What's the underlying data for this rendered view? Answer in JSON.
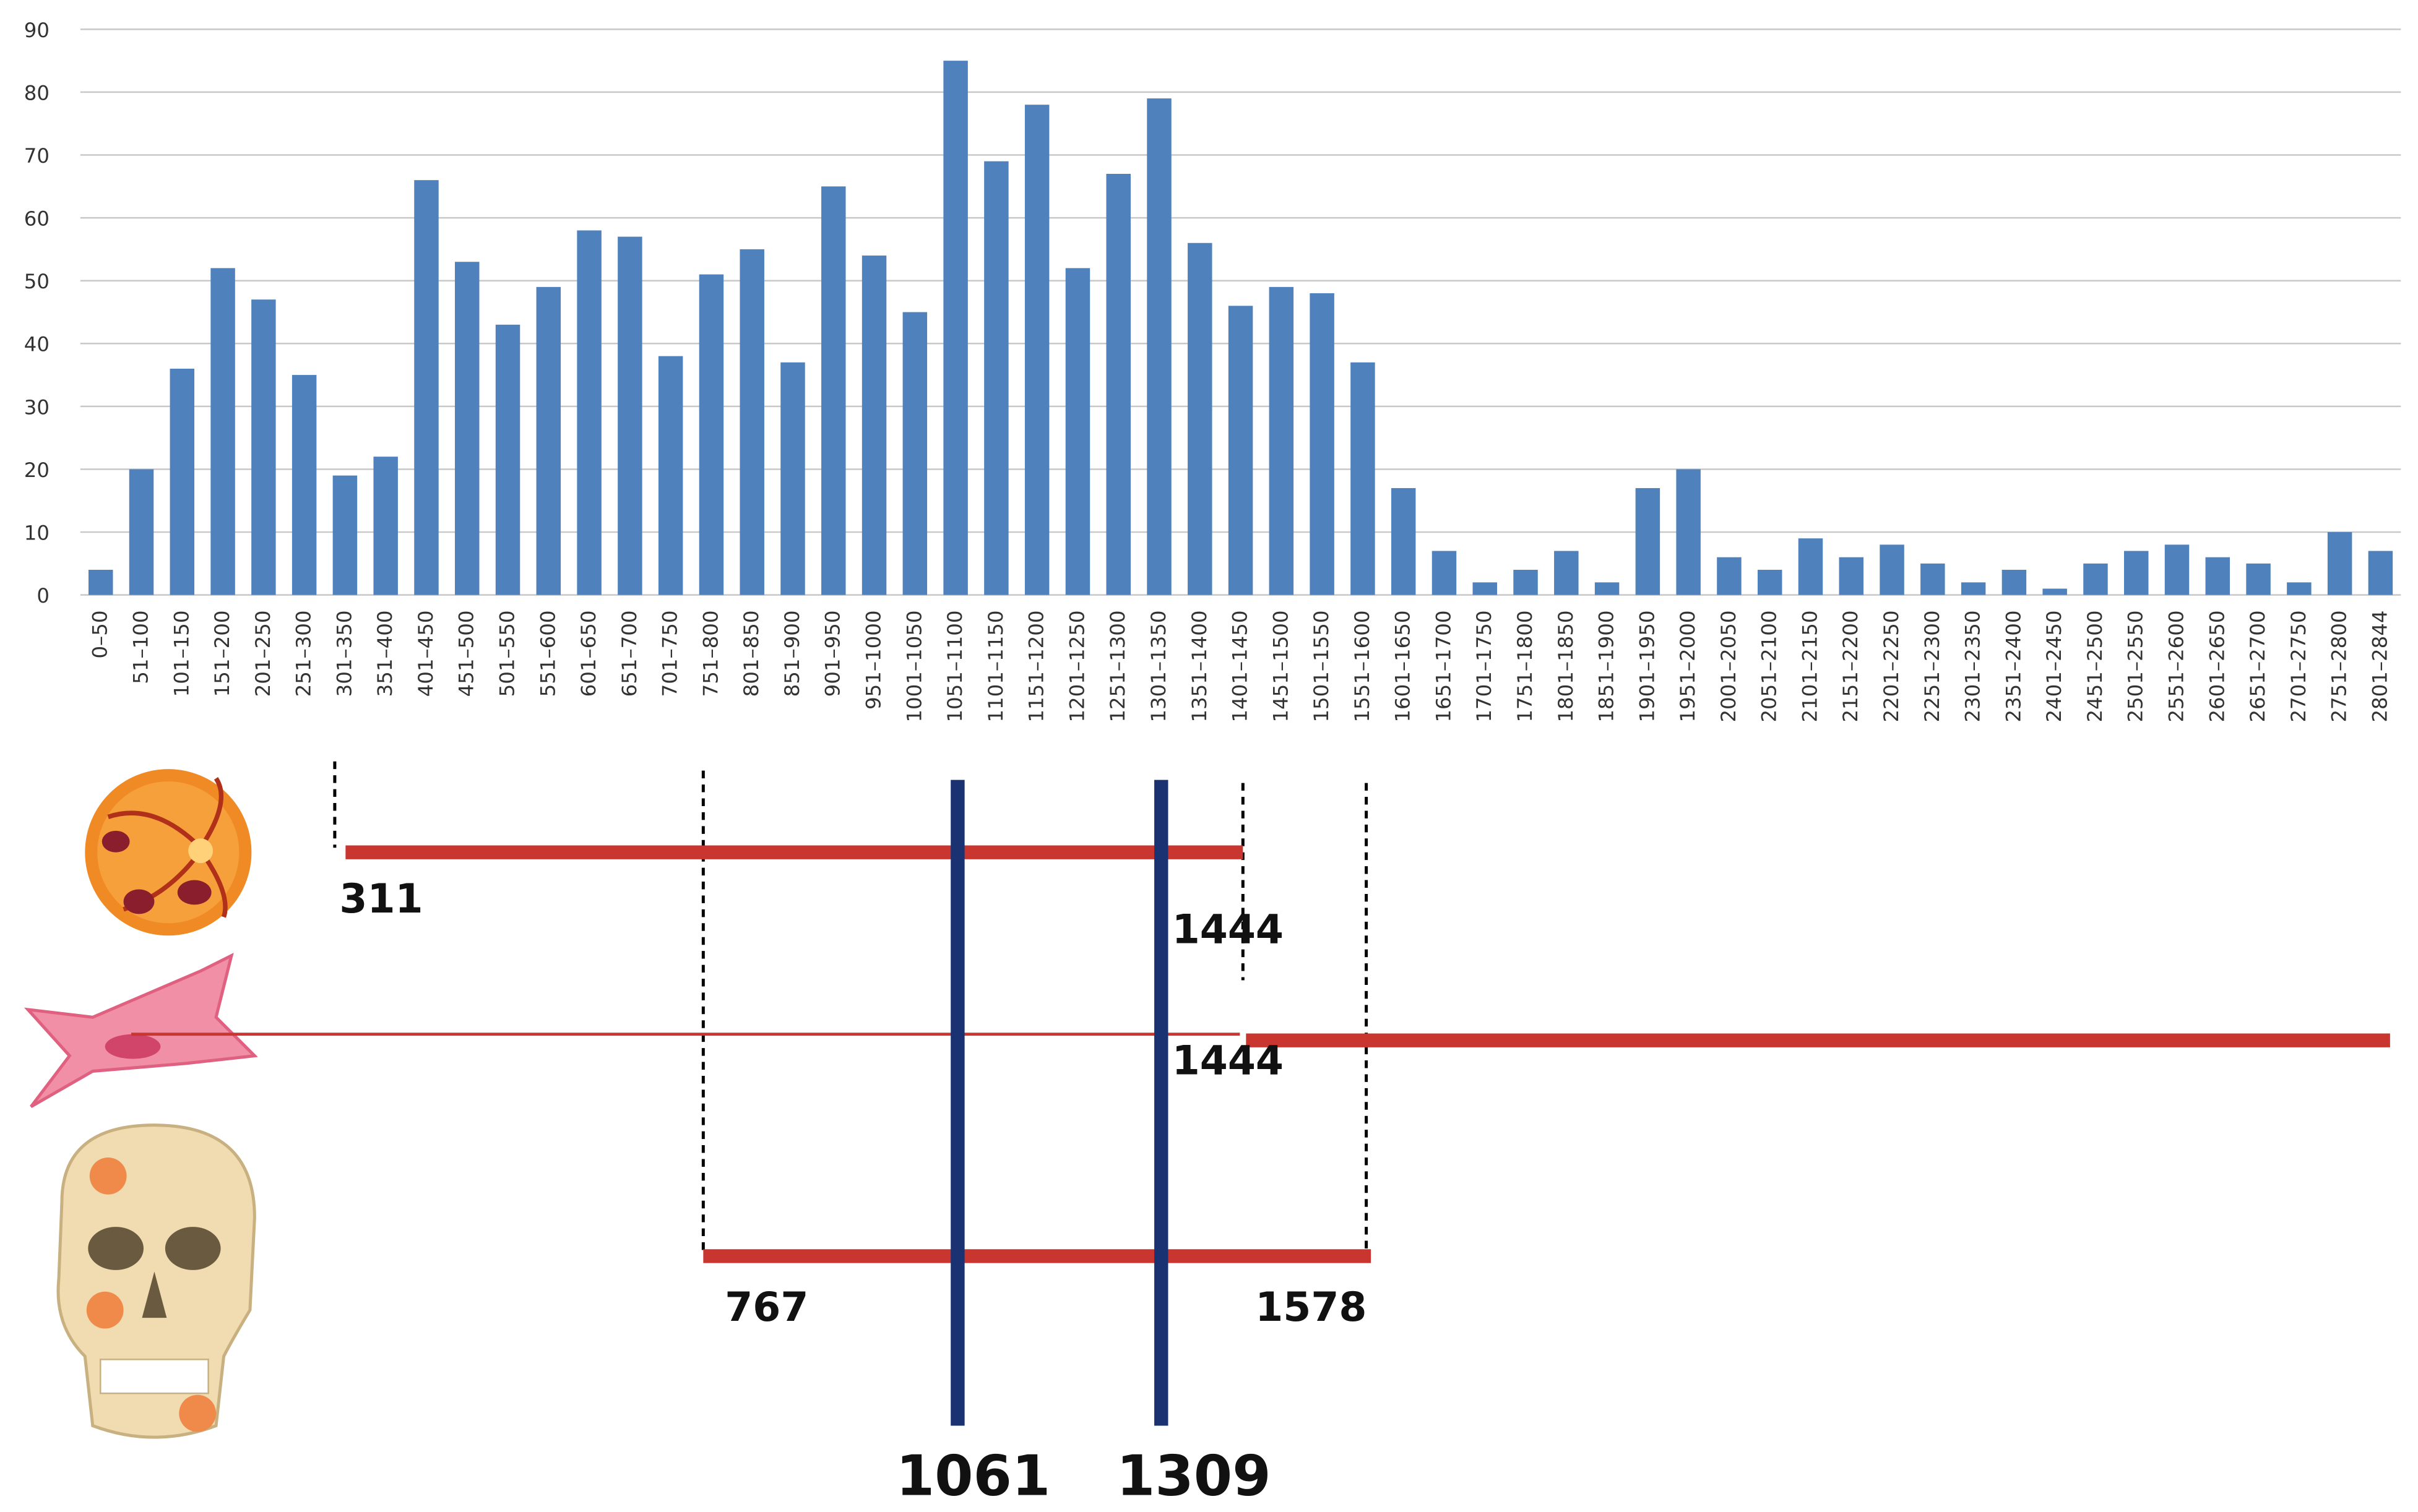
{
  "chart_data": {
    "type": "bar",
    "categories": [
      "0–50",
      "51–100",
      "101–150",
      "151–200",
      "201–250",
      "251–300",
      "301–350",
      "351–400",
      "401–450",
      "451–500",
      "501–550",
      "551–600",
      "601–650",
      "651–700",
      "701–750",
      "751–800",
      "801–850",
      "851–900",
      "901–950",
      "951–1000",
      "1001–1050",
      "1051–1100",
      "1101–1150",
      "1151–1200",
      "1201–1250",
      "1251–1300",
      "1301–1350",
      "1351–1400",
      "1401–1450",
      "1451–1500",
      "1501–1550",
      "1551–1600",
      "1601–1650",
      "1651–1700",
      "1701–1750",
      "1751–1800",
      "1801–1850",
      "1851–1900",
      "1901–1950",
      "1951–2000",
      "2001–2050",
      "2051–2100",
      "2101–2150",
      "2151–2200",
      "2201–2250",
      "2251–2300",
      "2301–2350",
      "2351–2400",
      "2401–2450",
      "2451–2500",
      "2501–2550",
      "2551–2600",
      "2601–2650",
      "2651–2700",
      "2701–2750",
      "2751–2800",
      "2801–2844"
    ],
    "values": [
      4,
      20,
      36,
      52,
      47,
      35,
      19,
      22,
      66,
      53,
      43,
      49,
      58,
      57,
      38,
      51,
      55,
      37,
      65,
      54,
      45,
      85,
      69,
      78,
      52,
      67,
      79,
      56,
      46,
      49,
      48,
      37,
      17,
      7,
      2,
      4,
      7,
      2,
      17,
      20,
      6,
      4,
      9,
      6,
      8,
      5,
      2,
      4,
      1,
      5,
      7,
      8,
      6,
      5,
      2,
      10,
      7
    ],
    "color": "#4f81bd",
    "ylim": [
      0,
      90
    ],
    "yticks": [
      0,
      10,
      20,
      30,
      40,
      50,
      60,
      70,
      80,
      90
    ],
    "grid": true,
    "annotations": [
      "311",
      "1444",
      "1444",
      "767",
      "1578",
      "1061",
      "1309"
    ]
  }
}
